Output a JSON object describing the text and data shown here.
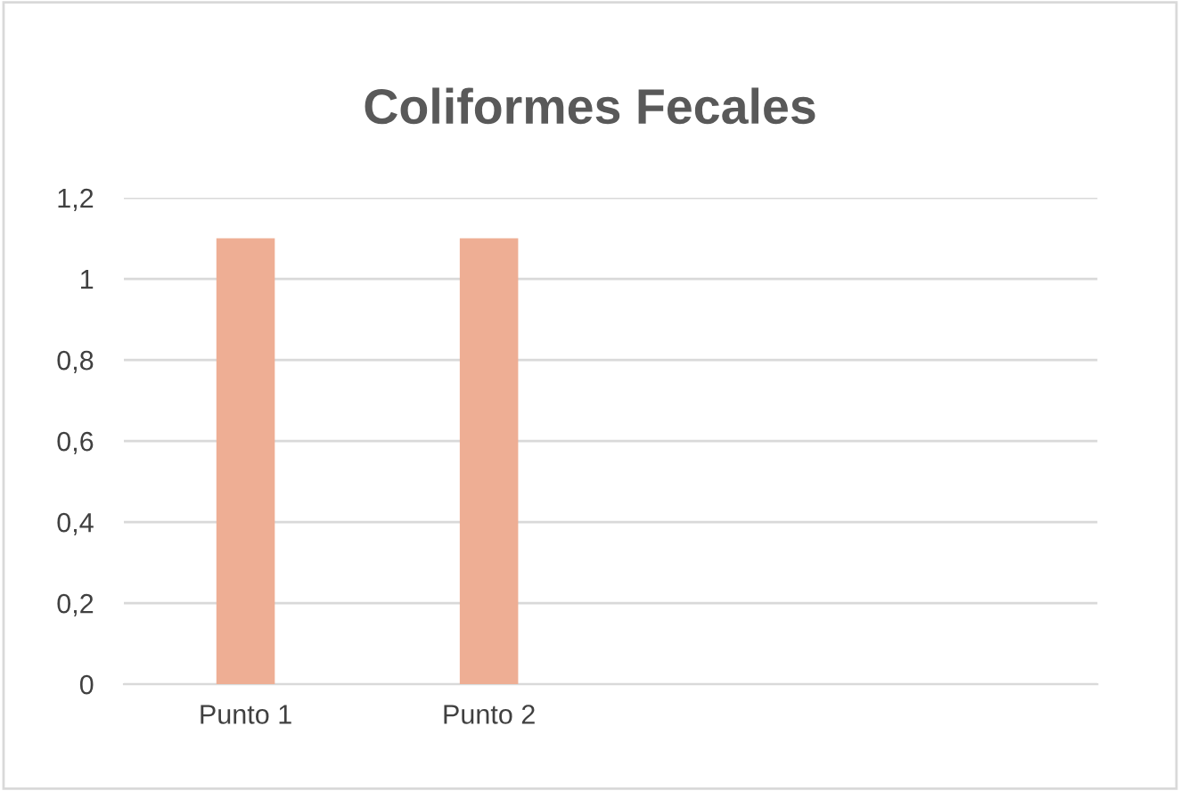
{
  "chart_data": {
    "type": "bar",
    "title": "Coliformes Fecales",
    "categories": [
      "Punto 1",
      "Punto 2",
      null,
      null
    ],
    "values": [
      1.1,
      1.1,
      null,
      null
    ],
    "color": "#eeae94",
    "ylim": [
      0,
      1.2
    ],
    "yticks": [
      {
        "value": 0,
        "label": "0"
      },
      {
        "value": 0.2,
        "label": "0,2"
      },
      {
        "value": 0.4,
        "label": "0,4"
      },
      {
        "value": 0.6,
        "label": "0,6"
      },
      {
        "value": 0.8,
        "label": "0,8"
      },
      {
        "value": 1,
        "label": "1"
      },
      {
        "value": 1.2,
        "label": "1,2"
      }
    ],
    "grid": "y",
    "legend": false
  }
}
